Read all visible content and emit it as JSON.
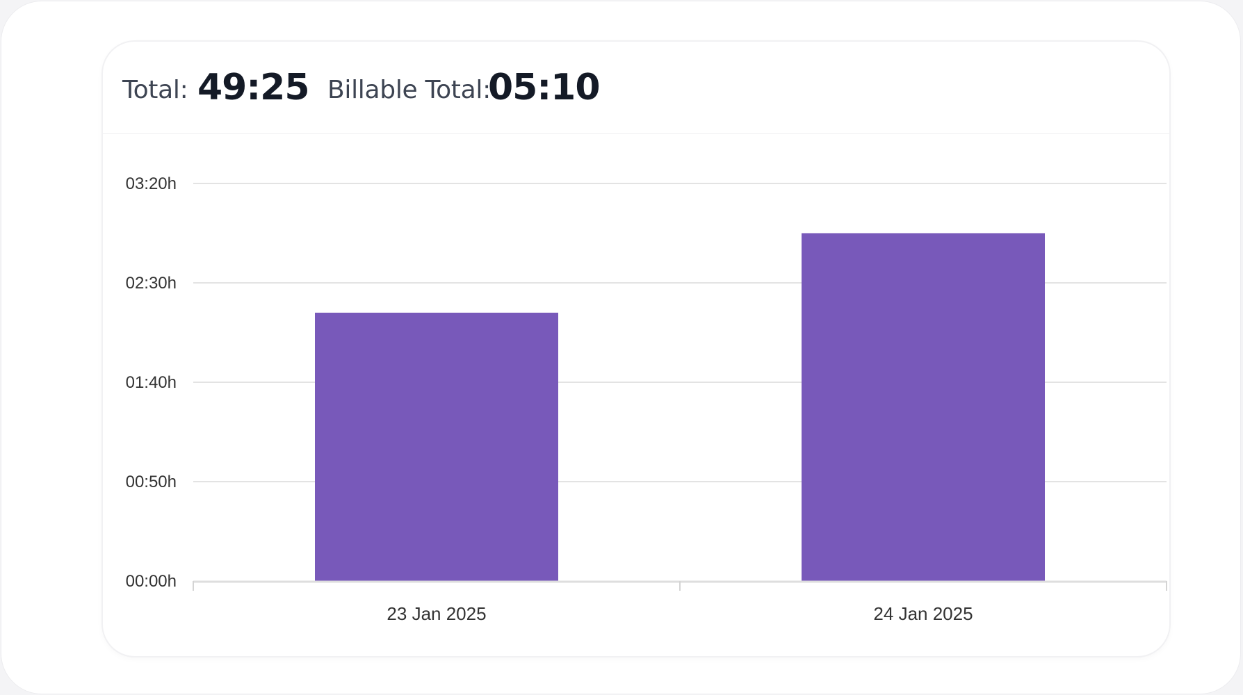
{
  "summary": {
    "total_label": "Total:",
    "total_value": "49:25",
    "billable_label": "Billable Total:",
    "billable_value": "05:10"
  },
  "chart_data": {
    "type": "bar",
    "categories": [
      "23 Jan 2025",
      "24 Jan 2025"
    ],
    "values_minutes": [
      135,
      175
    ],
    "y_ticks": [
      {
        "minutes": 0,
        "label": "00:00h"
      },
      {
        "minutes": 50,
        "label": "00:50h"
      },
      {
        "minutes": 100,
        "label": "01:40h"
      },
      {
        "minutes": 150,
        "label": "02:30h"
      },
      {
        "minutes": 200,
        "label": "03:20h"
      }
    ],
    "ylim": [
      0,
      200
    ],
    "grid": true,
    "legend": false,
    "bar_color": "#7859ba"
  }
}
